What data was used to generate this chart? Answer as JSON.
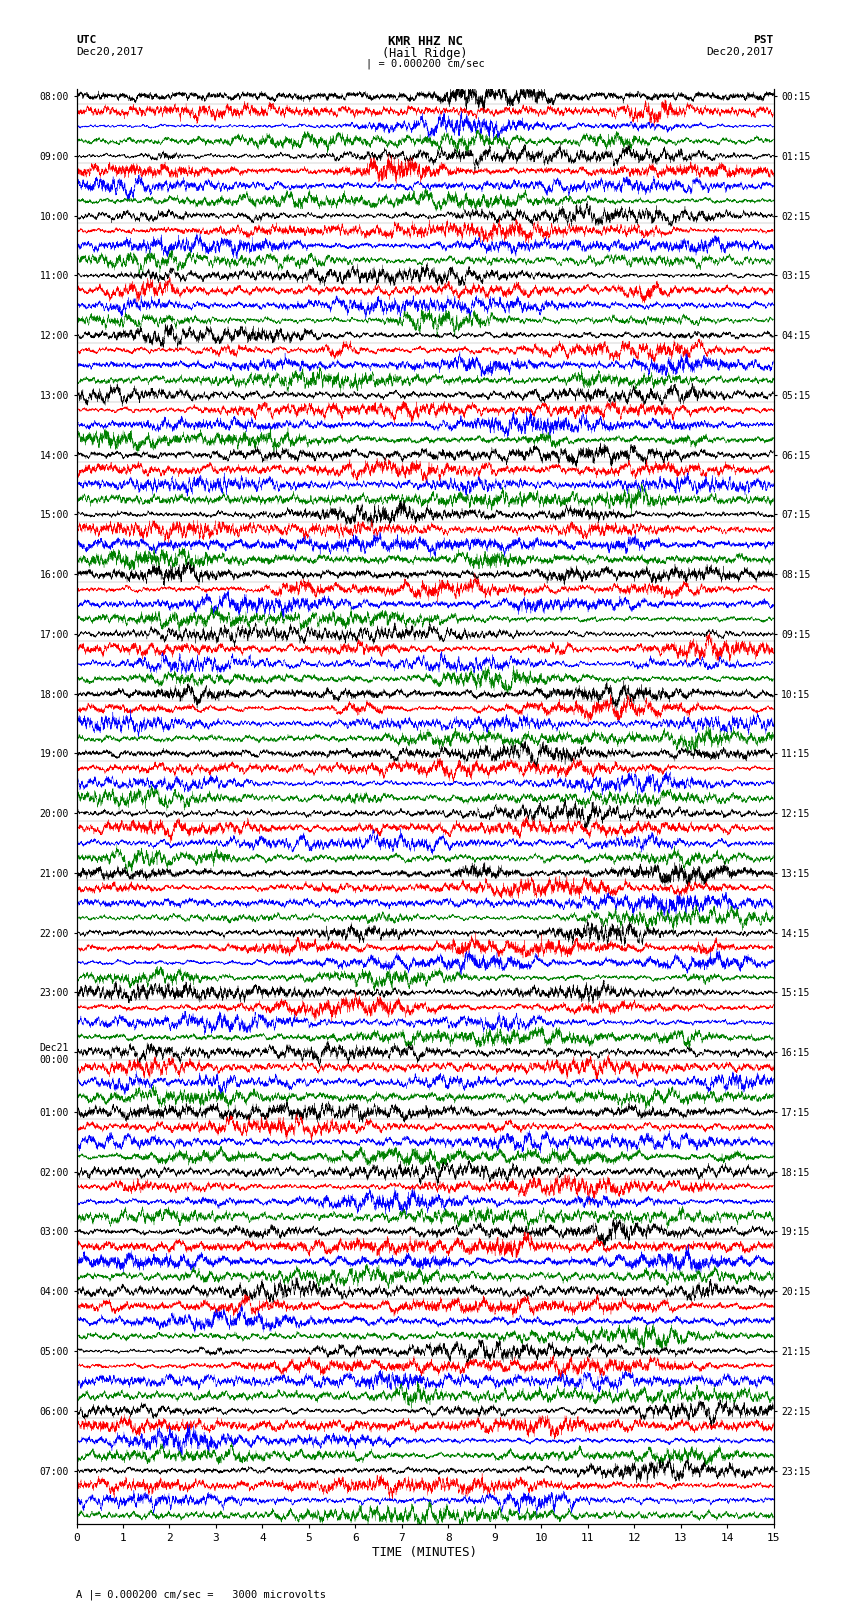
{
  "title_line1": "KMR HHZ NC",
  "title_line2": "(Hail Ridge)",
  "scale_note": "A |= 0.000200 cm/sec =   3000 microvolts",
  "utc_label": "UTC",
  "utc_date": "Dec20,2017",
  "pst_label": "PST",
  "pst_date": "Dec20,2017",
  "xlabel": "TIME (MINUTES)",
  "left_times": [
    "08:00",
    "09:00",
    "10:00",
    "11:00",
    "12:00",
    "13:00",
    "14:00",
    "15:00",
    "16:00",
    "17:00",
    "18:00",
    "19:00",
    "20:00",
    "21:00",
    "22:00",
    "23:00",
    "Dec21\n00:00",
    "01:00",
    "02:00",
    "03:00",
    "04:00",
    "05:00",
    "06:00",
    "07:00"
  ],
  "right_times": [
    "00:15",
    "01:15",
    "02:15",
    "03:15",
    "04:15",
    "05:15",
    "06:15",
    "07:15",
    "08:15",
    "09:15",
    "10:15",
    "11:15",
    "12:15",
    "13:15",
    "14:15",
    "15:15",
    "16:15",
    "17:15",
    "18:15",
    "19:15",
    "20:15",
    "21:15",
    "22:15",
    "23:15"
  ],
  "colors": [
    "black",
    "red",
    "blue",
    "green"
  ],
  "n_hours": 24,
  "traces_per_hour": 4,
  "x_ticks": [
    0,
    1,
    2,
    3,
    4,
    5,
    6,
    7,
    8,
    9,
    10,
    11,
    12,
    13,
    14,
    15
  ],
  "figsize": [
    8.5,
    16.13
  ],
  "dpi": 100,
  "bg_color": "white",
  "trace_amplitude": 0.48,
  "seed": 42
}
